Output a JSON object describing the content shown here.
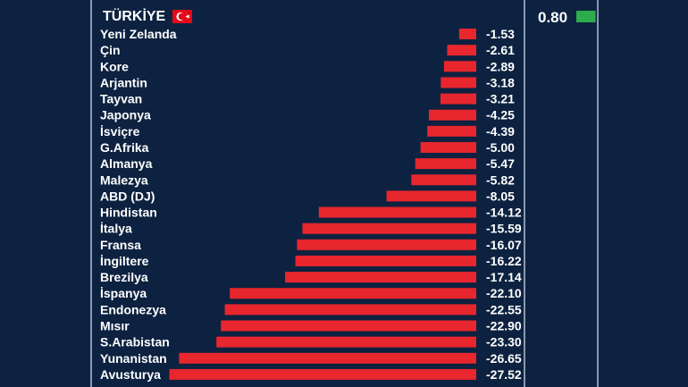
{
  "colors": {
    "background": "#0d2240",
    "negative_bar": "#e8262d",
    "positive_bar": "#2eab4a",
    "divider": "#8a98b0",
    "flag_red": "#e30a17"
  },
  "chart_data": {
    "type": "bar",
    "orientation": "horizontal",
    "grid": false,
    "highlight": {
      "label": "TÜRKİYE",
      "value": 0.8,
      "value_text": "0.80",
      "icon": "turkey-flag-icon"
    },
    "categories": [
      "Yeni Zelanda",
      "Çin",
      "Kore",
      "Arjantin",
      "Tayvan",
      "Japonya",
      "İsviçre",
      "G.Afrika",
      "Almanya",
      "Malezya",
      "ABD (DJ)",
      "Hindistan",
      "İtalya",
      "Fransa",
      "İngiltere",
      "Brezilya",
      "İspanya",
      "Endonezya",
      "Mısır",
      "S.Arabistan",
      "Yunanistan",
      "Avusturya"
    ],
    "values": [
      -1.53,
      -2.61,
      -2.89,
      -3.18,
      -3.21,
      -4.25,
      -4.39,
      -5.0,
      -5.47,
      -5.82,
      -8.05,
      -14.12,
      -15.59,
      -16.07,
      -16.22,
      -17.14,
      -22.1,
      -22.55,
      -22.9,
      -23.3,
      -26.65,
      -27.52
    ],
    "value_labels": [
      "-1.53",
      "-2.61",
      "-2.89",
      "-3.18",
      "-3.21",
      "-4.25",
      "-4.39",
      "-5.00",
      "-5.47",
      "-5.82",
      "-8.05",
      "-14.12",
      "-15.59",
      "-16.07",
      "-16.22",
      "-17.14",
      "-22.10",
      "-22.55",
      "-22.90",
      "-23.30",
      "-26.65",
      "-27.52"
    ]
  }
}
